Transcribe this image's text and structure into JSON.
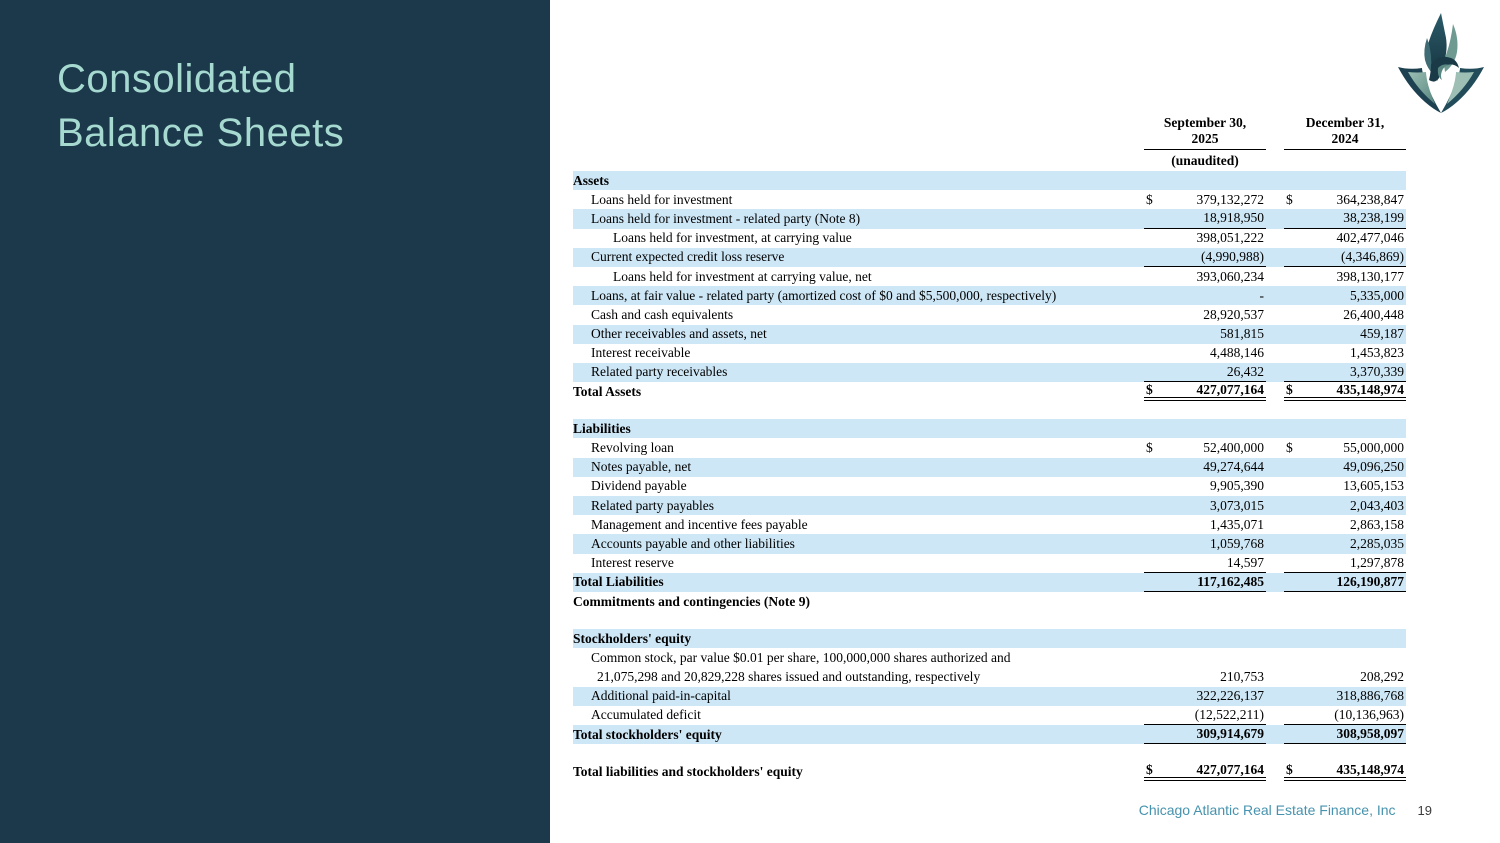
{
  "slide": {
    "title_line1": "Consolidated",
    "title_line2": "Balance Sheets",
    "footer_company": "Chicago Atlantic Real Estate Finance, Inc",
    "page_number": "19",
    "colors": {
      "panel": "#1B394B",
      "title_text": "#A6DAD1",
      "row_band": "#CEE7F6",
      "footer_teal": "#4793AE",
      "logo_dark": "#1D4150",
      "logo_light": "#9DBFB4"
    },
    "logo": "phoenix-flame-logo"
  },
  "table": {
    "col1_header_line1": "September 30,",
    "col1_header_line2": "2025",
    "col1_note": "(unaudited)",
    "col2_header_line1": "December 31,",
    "col2_header_line2": "2024",
    "rows": [
      {
        "label": "Assets",
        "indent": 0,
        "bold": true,
        "band": true
      },
      {
        "label": "Loans held for investment",
        "indent": 1,
        "d1": "$",
        "v1": "379,132,272",
        "d2": "$",
        "v2": "364,238,847",
        "band": false
      },
      {
        "label": "Loans held for investment - related party (Note 8)",
        "indent": 1,
        "v1": "18,918,950",
        "v2": "38,238,199",
        "band": true,
        "ul": "single"
      },
      {
        "label": "Loans held for investment, at carrying value",
        "indent": 2,
        "v1": "398,051,222",
        "v2": "402,477,046",
        "band": false
      },
      {
        "label": "Current expected credit loss reserve",
        "indent": 1,
        "v1": "(4,990,988)",
        "v2": "(4,346,869)",
        "band": true,
        "ul": "single"
      },
      {
        "label": "Loans held for investment at carrying value, net",
        "indent": 2,
        "v1": "393,060,234",
        "v2": "398,130,177",
        "band": false
      },
      {
        "label": "Loans, at fair value - related party (amortized cost of $0 and $5,500,000, respectively)",
        "indent": 1,
        "v1": "-",
        "v2": "5,335,000",
        "band": true
      },
      {
        "label": "Cash and cash equivalents",
        "indent": 1,
        "v1": "28,920,537",
        "v2": "26,400,448",
        "band": false
      },
      {
        "label": "Other receivables and assets, net",
        "indent": 1,
        "v1": "581,815",
        "v2": "459,187",
        "band": true
      },
      {
        "label": "Interest receivable",
        "indent": 1,
        "v1": "4,488,146",
        "v2": "1,453,823",
        "band": false
      },
      {
        "label": "Related party receivables",
        "indent": 1,
        "v1": "26,432",
        "v2": "3,370,339",
        "band": true,
        "ul": "single"
      },
      {
        "label": "Total Assets",
        "indent": 0,
        "bold": true,
        "vbold": true,
        "d1": "$",
        "v1": "427,077,164",
        "d2": "$",
        "v2": "435,148,974",
        "band": false,
        "ul": "double"
      },
      {
        "spacer": true
      },
      {
        "label": "Liabilities",
        "indent": 0,
        "bold": true,
        "band": true
      },
      {
        "label": "Revolving loan",
        "indent": 1,
        "d1": "$",
        "v1": "52,400,000",
        "d2": "$",
        "v2": "55,000,000",
        "band": false
      },
      {
        "label": "Notes payable, net",
        "indent": 1,
        "v1": "49,274,644",
        "v2": "49,096,250",
        "band": true
      },
      {
        "label": "Dividend payable",
        "indent": 1,
        "v1": "9,905,390",
        "v2": "13,605,153",
        "band": false
      },
      {
        "label": "Related party payables",
        "indent": 1,
        "v1": "3,073,015",
        "v2": "2,043,403",
        "band": true
      },
      {
        "label": "Management and incentive fees payable",
        "indent": 1,
        "v1": "1,435,071",
        "v2": "2,863,158",
        "band": false
      },
      {
        "label": "Accounts payable and other liabilities",
        "indent": 1,
        "v1": "1,059,768",
        "v2": "2,285,035",
        "band": true
      },
      {
        "label": "Interest reserve",
        "indent": 1,
        "v1": "14,597",
        "v2": "1,297,878",
        "band": false,
        "ul": "single"
      },
      {
        "label": "Total Liabilities",
        "indent": 0,
        "bold": true,
        "vbold": true,
        "v1": "117,162,485",
        "v2": "126,190,877",
        "band": true,
        "ul": "single"
      },
      {
        "label": "Commitments and contingencies (Note 9)",
        "indent": 0,
        "bold": true,
        "band": false
      },
      {
        "spacer": true
      },
      {
        "label": "Stockholders' equity",
        "indent": 0,
        "bold": true,
        "band": true
      },
      {
        "label": "Common stock, par value $0.01 per share, 100,000,000 shares authorized and",
        "indent": 1,
        "band": false
      },
      {
        "label": "21,075,298 and 20,829,228 shares issued and outstanding, respectively",
        "indent": 1,
        "cont": true,
        "v1": "210,753",
        "v2": "208,292",
        "band": false
      },
      {
        "label": "Additional paid-in-capital",
        "indent": 1,
        "v1": "322,226,137",
        "v2": "318,886,768",
        "band": true
      },
      {
        "label": "Accumulated deficit",
        "indent": 1,
        "v1": "(12,522,211)",
        "v2": "(10,136,963)",
        "band": false,
        "ul": "single"
      },
      {
        "label": "Total stockholders' equity",
        "indent": 0,
        "bold": true,
        "vbold": true,
        "v1": "309,914,679",
        "v2": "308,958,097",
        "band": true,
        "ul": "single"
      },
      {
        "spacer": true
      },
      {
        "label": "Total liabilities and stockholders' equity",
        "indent": 0,
        "bold": true,
        "vbold": true,
        "d1": "$",
        "v1": "427,077,164",
        "d2": "$",
        "v2": "435,148,974",
        "band": false,
        "ul": "double"
      }
    ]
  }
}
